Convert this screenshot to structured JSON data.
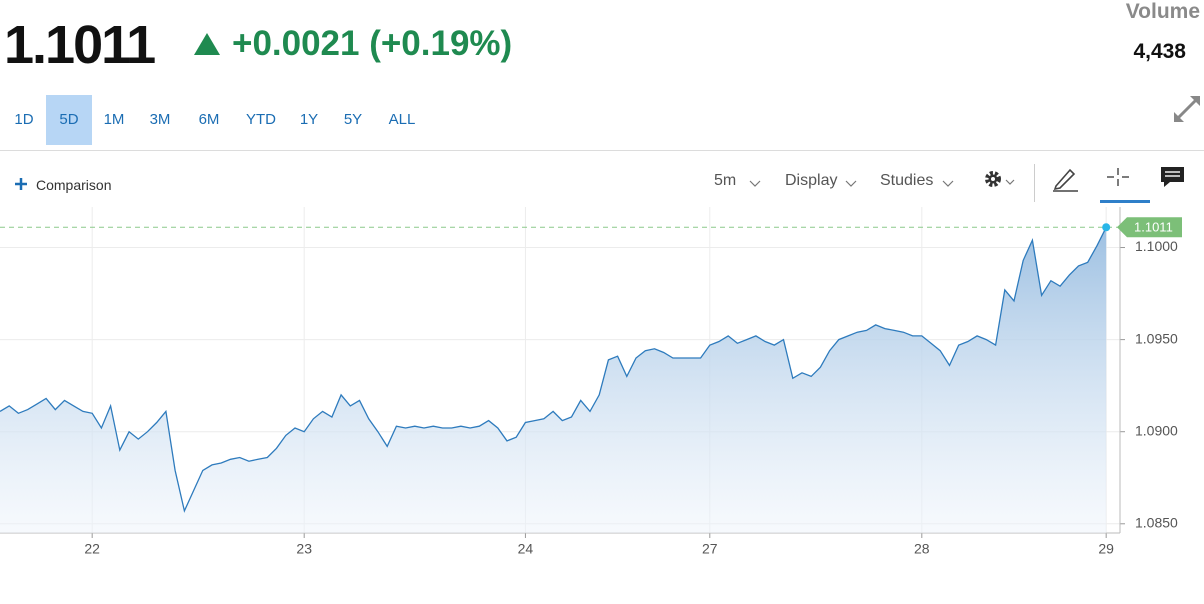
{
  "quote": {
    "price": "1.1011",
    "change": "+0.0021 (+0.19%)",
    "volume_label": "Volume",
    "volume": "4,438"
  },
  "ranges": [
    "1D",
    "5D",
    "1M",
    "3M",
    "6M",
    "YTD",
    "1Y",
    "5Y",
    "ALL"
  ],
  "selected_range": 1,
  "toolbar": {
    "comparison": "Comparison",
    "interval": "5m",
    "display": "Display",
    "studies": "Studies"
  },
  "chart_data": {
    "type": "area",
    "series": [
      {
        "color": "#2e7bbd",
        "values": [
          1.0911,
          1.0914,
          1.091,
          1.0912,
          1.0915,
          1.0918,
          1.0912,
          1.0917,
          1.0914,
          1.0911,
          1.091,
          1.0902,
          1.0914,
          1.089,
          1.09,
          1.0896,
          1.09,
          1.0905,
          1.0911,
          1.0879,
          1.0857,
          1.0868,
          1.0879,
          1.0882,
          1.0883,
          1.0885,
          1.0886,
          1.0884,
          1.0885,
          1.0886,
          1.0891,
          1.0898,
          1.0902,
          1.09,
          1.0907,
          1.0911,
          1.0908,
          1.092,
          1.0914,
          1.0917,
          1.0907,
          1.09,
          1.0892,
          1.0903,
          1.0902,
          1.0903,
          1.0902,
          1.0903,
          1.0902,
          1.0902,
          1.0903,
          1.0902,
          1.0903,
          1.0906,
          1.0902,
          1.0895,
          1.0897,
          1.0905,
          1.0906,
          1.0907,
          1.0911,
          1.0906,
          1.0908,
          1.0917,
          1.0911,
          1.092,
          1.0939,
          1.0941,
          1.093,
          1.094,
          1.0944,
          1.0945,
          1.0943,
          1.094,
          1.094,
          1.094,
          1.094,
          1.0947,
          1.0949,
          1.0952,
          1.0948,
          1.095,
          1.0952,
          1.0949,
          1.0947,
          1.095,
          1.0929,
          1.0932,
          1.093,
          1.0935,
          1.0944,
          1.095,
          1.0952,
          1.0954,
          1.0955,
          1.0958,
          1.0956,
          1.0955,
          1.0954,
          1.0952,
          1.0952,
          1.0948,
          1.0944,
          1.0936,
          1.0947,
          1.0949,
          1.0952,
          1.095,
          1.0947,
          1.0977,
          1.0971,
          1.0993,
          1.1004,
          1.0974,
          1.0982,
          1.0979,
          1.0985,
          1.099,
          1.0992,
          1.1001,
          1.1011
        ]
      }
    ],
    "xlim": [
      0,
      121.5
    ],
    "xticks": [
      {
        "value": 10,
        "label": "22"
      },
      {
        "value": 33,
        "label": "23"
      },
      {
        "value": 57,
        "label": "24"
      },
      {
        "value": 77,
        "label": "27"
      },
      {
        "value": 100,
        "label": "28"
      },
      {
        "value": 120,
        "label": "29"
      }
    ],
    "ylim": [
      1.0845,
      1.1022
    ],
    "yticks": [
      {
        "value": 1.085,
        "label": "1.0850"
      },
      {
        "value": 1.09,
        "label": "1.0900"
      },
      {
        "value": 1.095,
        "label": "1.0950"
      },
      {
        "value": 1.1,
        "label": "1.1000"
      }
    ],
    "last_price": 1.1011,
    "grid": true
  }
}
